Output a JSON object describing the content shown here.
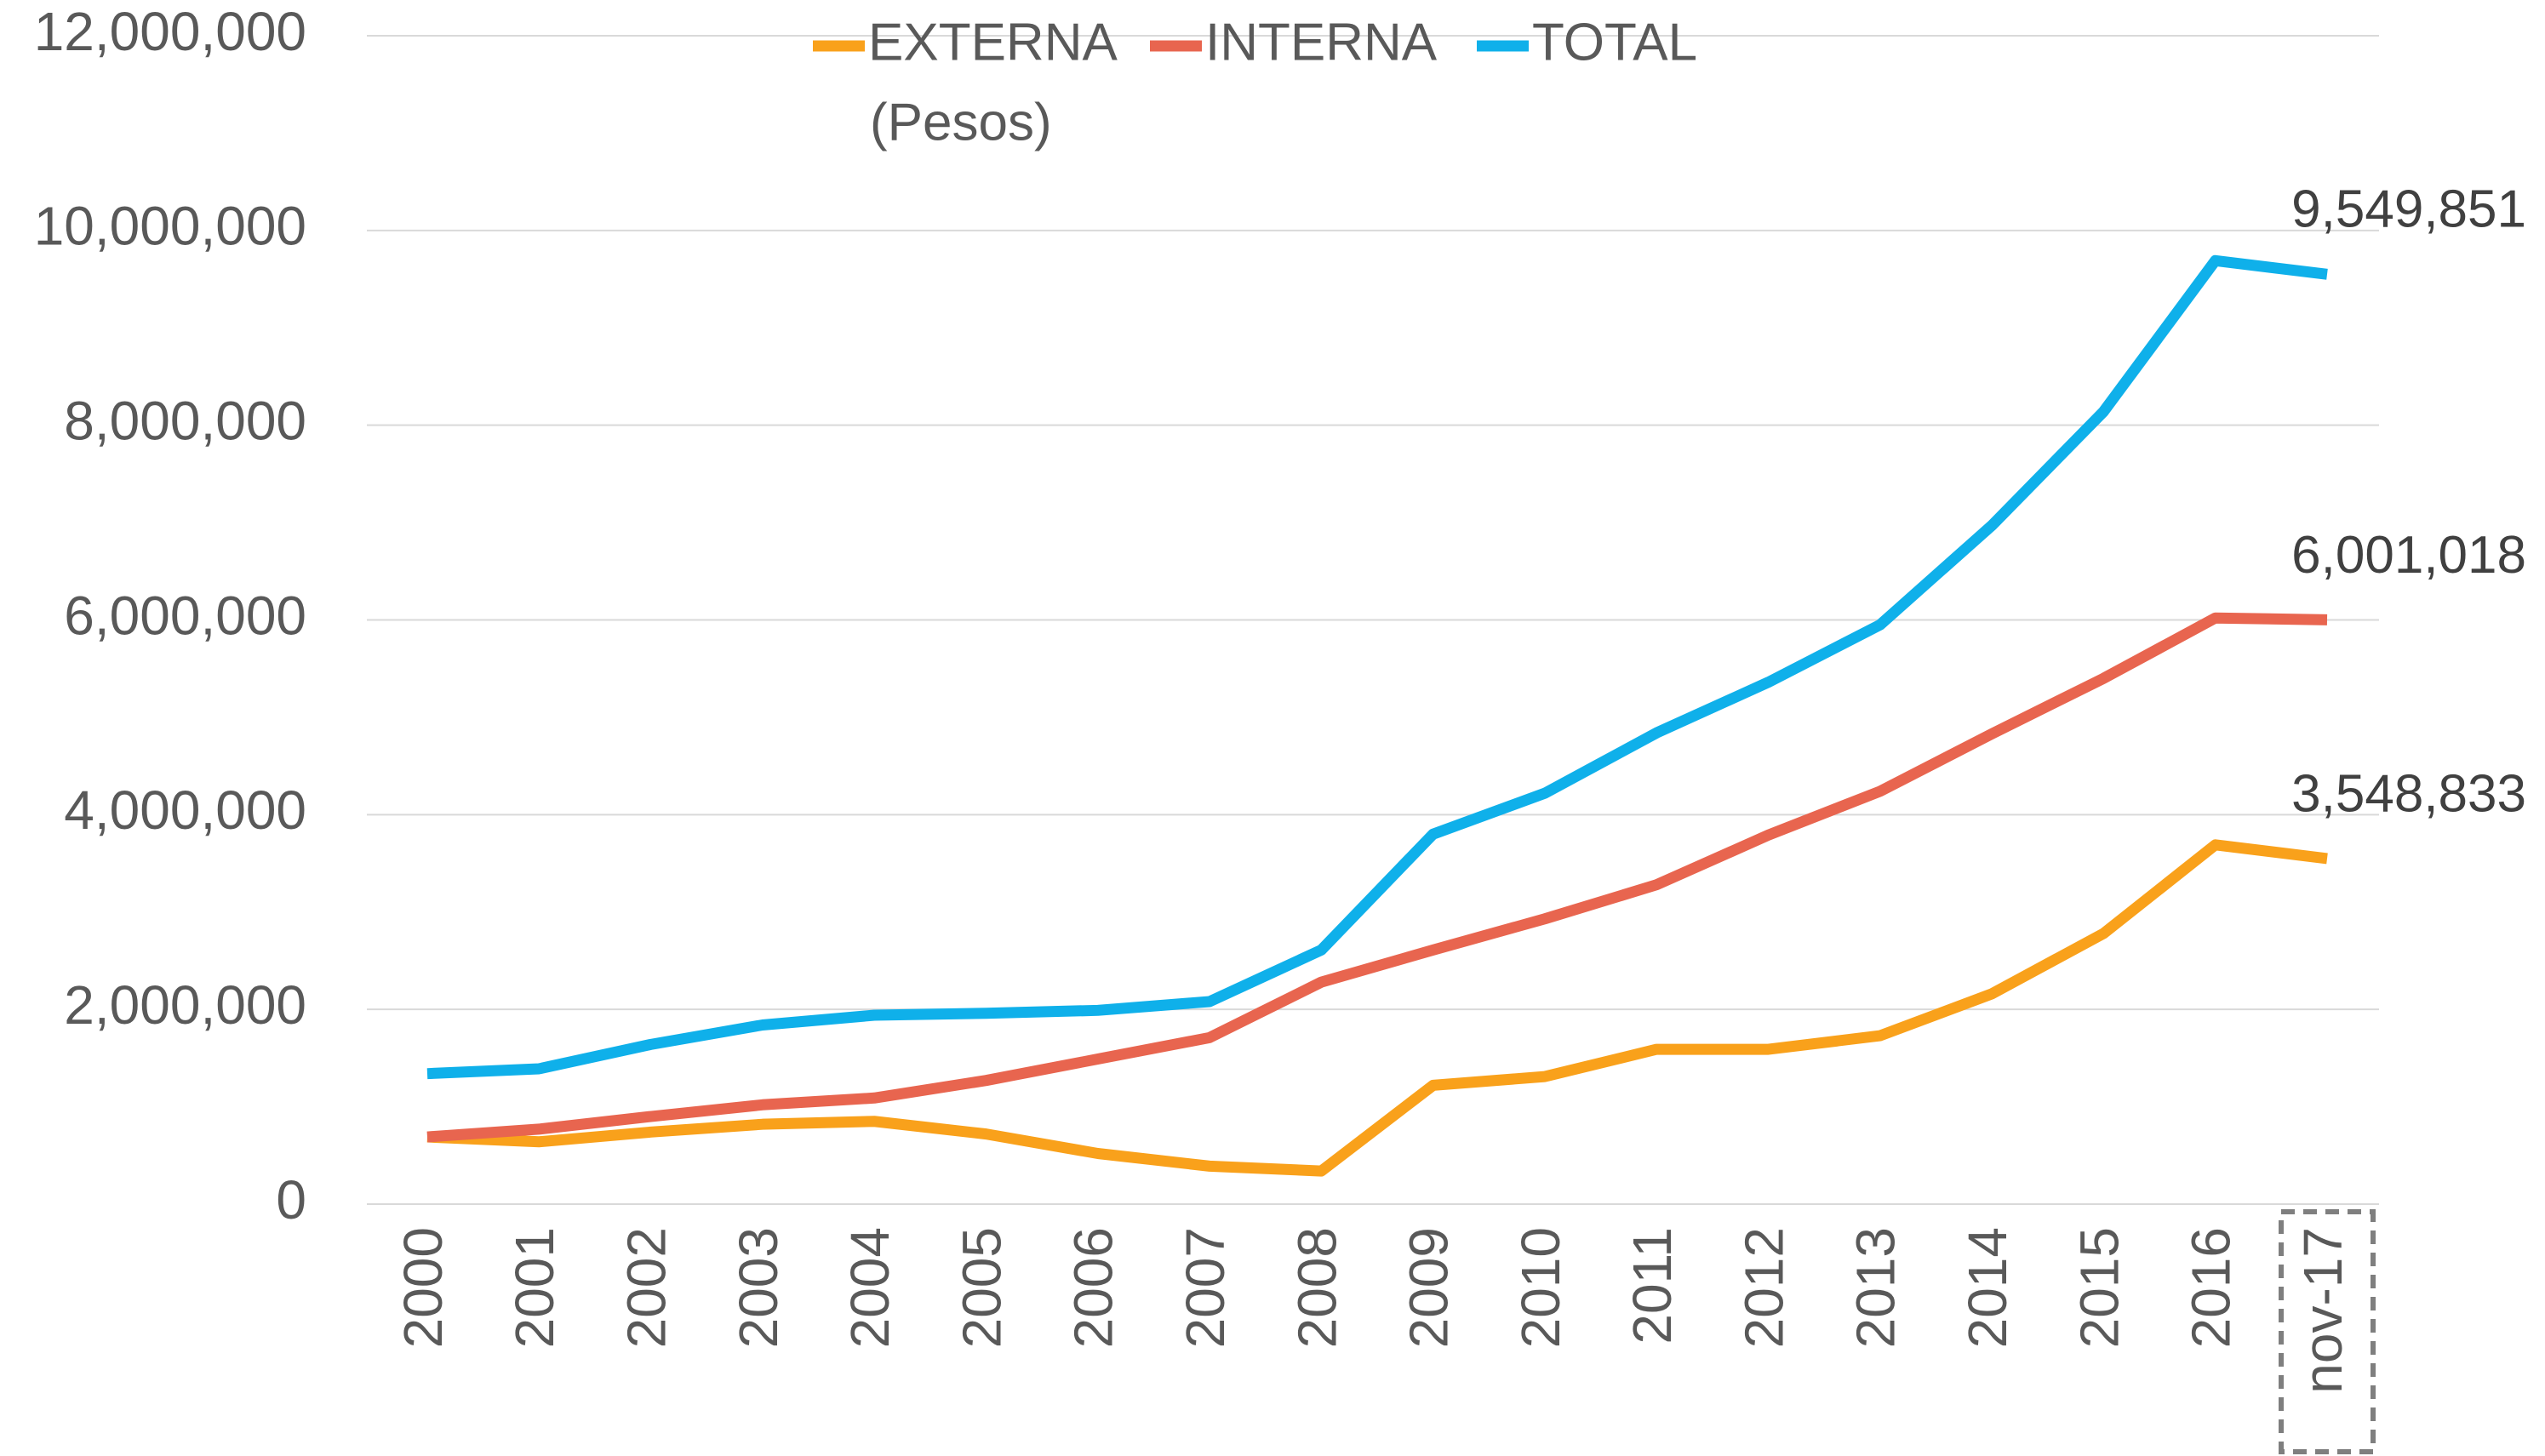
{
  "chart_data": {
    "type": "line",
    "subtitle": "(Pesos)",
    "categories": [
      "2000",
      "2001",
      "2002",
      "2003",
      "2004",
      "2005",
      "2006",
      "2007",
      "2008",
      "2009",
      "2010",
      "2011",
      "2012",
      "2013",
      "2014",
      "2015",
      "2016",
      "nov-17"
    ],
    "series": [
      {
        "name": "EXTERNA",
        "color": "#f9a11b",
        "values": [
          690000,
          640000,
          740000,
          820000,
          850000,
          720000,
          520000,
          390000,
          340000,
          1220000,
          1310000,
          1590000,
          1590000,
          1730000,
          2160000,
          2780000,
          3690000,
          3548833
        ],
        "value_labels": [
          null,
          null,
          null,
          null,
          null,
          null,
          null,
          null,
          null,
          null,
          null,
          null,
          null,
          null,
          null,
          null,
          null,
          "3,548,833"
        ]
      },
      {
        "name": "INTERNA",
        "color": "#e8654f",
        "values": [
          690000,
          770000,
          900000,
          1020000,
          1090000,
          1270000,
          1490000,
          1710000,
          2280000,
          2610000,
          2930000,
          3280000,
          3790000,
          4240000,
          4830000,
          5400000,
          6020000,
          6001018
        ],
        "value_labels": [
          null,
          null,
          null,
          null,
          null,
          null,
          null,
          null,
          null,
          null,
          null,
          null,
          null,
          null,
          null,
          null,
          null,
          "6,001,018"
        ]
      },
      {
        "name": "TOTAL",
        "color": "#0fb0ea",
        "values": [
          1340000,
          1390000,
          1640000,
          1840000,
          1940000,
          1960000,
          1990000,
          2080000,
          2610000,
          3800000,
          4220000,
          4840000,
          5360000,
          5950000,
          6970000,
          8140000,
          9690000,
          9549851
        ],
        "value_labels": [
          null,
          null,
          null,
          null,
          null,
          null,
          null,
          null,
          null,
          null,
          null,
          null,
          null,
          null,
          null,
          null,
          null,
          "9,549,851"
        ]
      }
    ],
    "ylim": [
      0,
      12000000
    ],
    "yticks": [
      {
        "value": 0,
        "label": "0"
      },
      {
        "value": 2000000,
        "label": "2,000,000"
      },
      {
        "value": 4000000,
        "label": "4,000,000"
      },
      {
        "value": 6000000,
        "label": "6,000,000"
      },
      {
        "value": 8000000,
        "label": "8,000,000"
      },
      {
        "value": 10000000,
        "label": "10,000,000"
      },
      {
        "value": 12000000,
        "label": "12,000,000"
      }
    ],
    "grid": true
  }
}
